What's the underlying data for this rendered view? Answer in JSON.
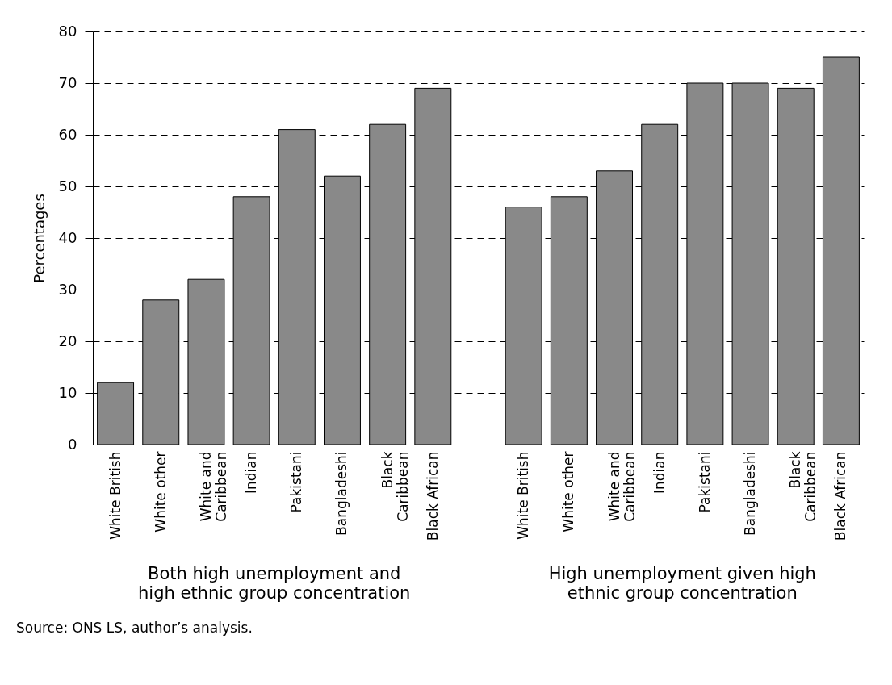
{
  "chart_data": {
    "type": "bar",
    "ylabel": "Percentages",
    "categories": [
      "White British",
      "White other",
      "White and Caribbean",
      "Indian",
      "Pakistani",
      "Bangladeshi",
      "Black Caribbean",
      "Black African",
      null,
      "White British",
      "White other",
      "White and Caribbean",
      "Indian",
      "Pakistani",
      "Bangladeshi",
      "Black Caribbean",
      "Black African"
    ],
    "values": [
      12,
      28,
      32,
      48,
      61,
      52,
      62,
      69,
      null,
      46,
      48,
      53,
      62,
      70,
      70,
      69,
      75
    ],
    "color": "#898989",
    "ylim": [
      0,
      80
    ],
    "yticks": [
      0,
      10,
      20,
      30,
      40,
      50,
      60,
      70,
      80
    ],
    "grid": "y",
    "annotations": [
      "Both high unemployment and high ethnic group concentration",
      "High unemployment given high ethnic group concentration",
      "Source: ONS LS, author’s analysis."
    ]
  }
}
